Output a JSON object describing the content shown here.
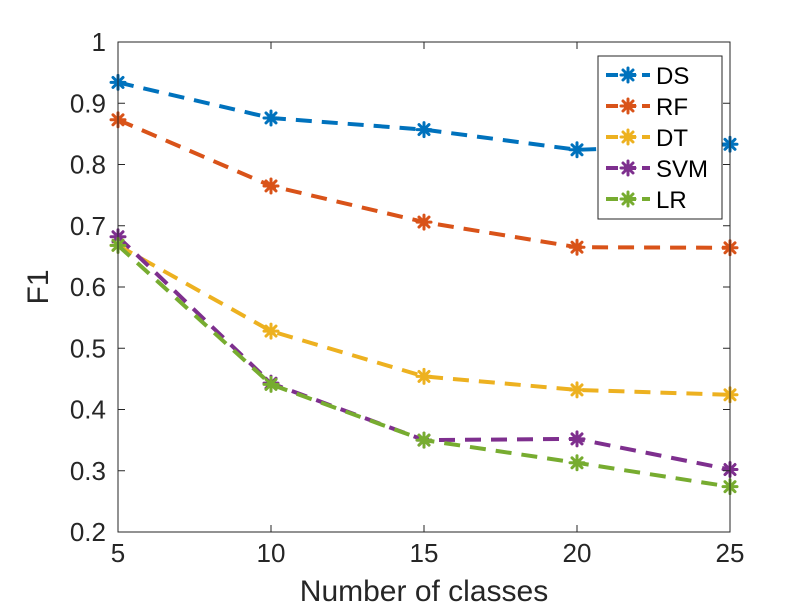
{
  "chart_data": {
    "type": "line",
    "title": "",
    "xlabel": "Number of classes",
    "ylabel": "F1",
    "x": [
      5,
      10,
      15,
      20,
      25
    ],
    "xlim": [
      5,
      25
    ],
    "ylim": [
      0.2,
      1
    ],
    "xticks": [
      "5",
      "10",
      "15",
      "20",
      "25"
    ],
    "yticks": [
      "0.2",
      "0.3",
      "0.4",
      "0.5",
      "0.6",
      "0.7",
      "0.8",
      "0.9",
      "1"
    ],
    "grid": false,
    "legend_position": "top-right",
    "line_style": "dashed",
    "marker": "asterisk",
    "series": [
      {
        "name": "DS",
        "color": "#0072BD",
        "values": [
          0.934,
          0.876,
          0.857,
          0.824,
          0.833
        ]
      },
      {
        "name": "RF",
        "color": "#D95319",
        "values": [
          0.873,
          0.765,
          0.706,
          0.665,
          0.664
        ]
      },
      {
        "name": "DT",
        "color": "#EDB120",
        "values": [
          0.668,
          0.528,
          0.454,
          0.432,
          0.424
        ]
      },
      {
        "name": "SVM",
        "color": "#7E2F8E",
        "values": [
          0.682,
          0.443,
          0.35,
          0.352,
          0.302
        ]
      },
      {
        "name": "LR",
        "color": "#77AC30",
        "values": [
          0.668,
          0.441,
          0.35,
          0.313,
          0.274
        ]
      }
    ]
  }
}
